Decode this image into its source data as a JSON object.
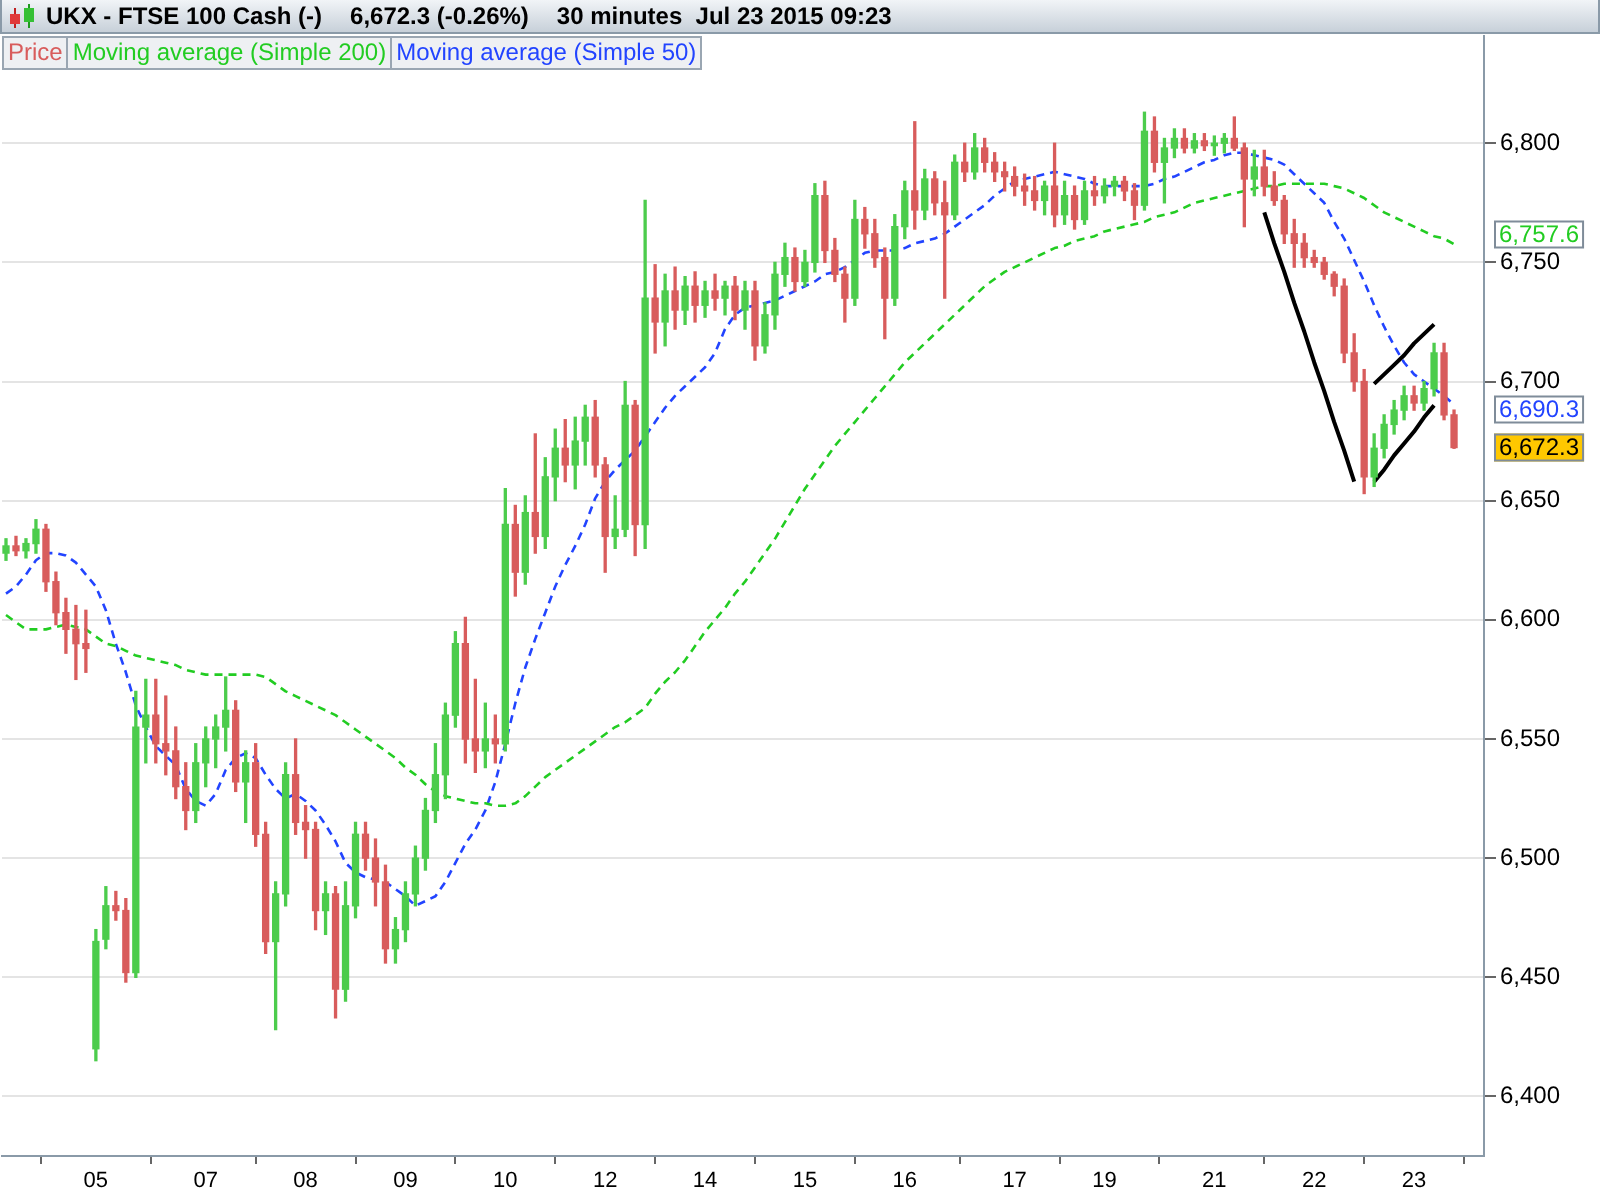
{
  "chart_data": {
    "type": "candlestick",
    "title": "UKX - FTSE 100 Cash (-)",
    "subtitle": "6,672.3 (-0.26%)",
    "annotations": [
      "30 minutes  Jul 23 2015 09:23"
    ],
    "categories": [
      null,
      null,
      null,
      null,
      null,
      null,
      null,
      null,
      null,
      "05",
      null,
      null,
      null,
      null,
      null,
      null,
      null,
      null,
      null,
      null,
      "07",
      null,
      null,
      null,
      null,
      null,
      null,
      null,
      null,
      null,
      "08",
      null,
      null,
      null,
      null,
      null,
      null,
      null,
      null,
      null,
      "09",
      null,
      null,
      null,
      null,
      null,
      null,
      null,
      null,
      null,
      "10",
      null,
      null,
      null,
      null,
      null,
      null,
      null,
      null,
      null,
      "12",
      null,
      null,
      null,
      null,
      null,
      null,
      null,
      null,
      null,
      "14",
      null,
      null,
      null,
      null,
      null,
      null,
      null,
      null,
      null,
      "15",
      null,
      null,
      null,
      null,
      null,
      null,
      null,
      null,
      null,
      "16",
      null,
      null,
      null,
      null,
      null,
      null,
      null,
      null,
      null,
      null,
      "17",
      null,
      null,
      null,
      null,
      null,
      null,
      null,
      null,
      "19",
      null,
      null,
      null,
      null,
      null,
      null,
      null,
      null,
      null,
      null,
      "21",
      null,
      null,
      null,
      null,
      null,
      null,
      null,
      null,
      null,
      "22",
      null,
      null,
      null,
      null,
      null,
      null,
      null,
      null,
      null,
      "23",
      null,
      null,
      null,
      null
    ],
    "ylim": [
      6375,
      6845
    ],
    "yticks": [
      {
        "value": 6400,
        "label": "6,400"
      },
      {
        "value": 6450,
        "label": "6,450"
      },
      {
        "value": 6500,
        "label": "6,500"
      },
      {
        "value": 6550,
        "label": "6,550"
      },
      {
        "value": 6600,
        "label": "6,600"
      },
      {
        "value": 6650,
        "label": "6,650"
      },
      {
        "value": 6700,
        "label": "6,700"
      },
      {
        "value": 6750,
        "label": "6,750"
      },
      {
        "value": 6800,
        "label": "6,800"
      }
    ],
    "grid": "y",
    "legend": "top left",
    "series": [
      {
        "name": "Price",
        "color": "#d85c5c",
        "ohlc": [
          [
            6628,
            6634,
            6625,
            6631
          ],
          [
            6631,
            6635,
            6627,
            6629
          ],
          [
            6629,
            6634,
            6626,
            6632
          ],
          [
            6632,
            6642,
            6628,
            6638
          ],
          [
            6638,
            6640,
            6612,
            6616
          ],
          [
            6616,
            6620,
            6598,
            6603
          ],
          [
            6603,
            6609,
            6586,
            6596
          ],
          [
            6596,
            6606,
            6575,
            6590
          ],
          [
            6590,
            6604,
            6578,
            6588
          ],
          [
            6420,
            6470,
            6415,
            6465
          ],
          [
            6466,
            6488,
            6462,
            6480
          ],
          [
            6480,
            6486,
            6474,
            6478
          ],
          [
            6478,
            6483,
            6448,
            6452
          ],
          [
            6452,
            6570,
            6450,
            6555
          ],
          [
            6555,
            6575,
            6540,
            6560
          ],
          [
            6560,
            6575,
            6540,
            6548
          ],
          [
            6548,
            6568,
            6535,
            6545
          ],
          [
            6545,
            6555,
            6525,
            6530
          ],
          [
            6530,
            6540,
            6512,
            6520
          ],
          [
            6520,
            6548,
            6515,
            6540
          ],
          [
            6540,
            6555,
            6530,
            6550
          ],
          [
            6550,
            6560,
            6538,
            6555
          ],
          [
            6555,
            6576,
            6545,
            6562
          ],
          [
            6562,
            6566,
            6528,
            6532
          ],
          [
            6532,
            6545,
            6515,
            6540
          ],
          [
            6540,
            6548,
            6505,
            6510
          ],
          [
            6510,
            6515,
            6460,
            6465
          ],
          [
            6465,
            6490,
            6428,
            6485
          ],
          [
            6485,
            6540,
            6480,
            6535
          ],
          [
            6535,
            6550,
            6510,
            6515
          ],
          [
            6515,
            6522,
            6500,
            6512
          ],
          [
            6512,
            6515,
            6470,
            6478
          ],
          [
            6478,
            6490,
            6468,
            6485
          ],
          [
            6485,
            6488,
            6433,
            6445
          ],
          [
            6445,
            6490,
            6440,
            6480
          ],
          [
            6480,
            6515,
            6475,
            6510
          ],
          [
            6510,
            6515,
            6495,
            6500
          ],
          [
            6500,
            6508,
            6480,
            6490
          ],
          [
            6490,
            6497,
            6456,
            6462
          ],
          [
            6462,
            6475,
            6456,
            6470
          ],
          [
            6470,
            6490,
            6465,
            6485
          ],
          [
            6485,
            6505,
            6480,
            6500
          ],
          [
            6500,
            6525,
            6495,
            6520
          ],
          [
            6520,
            6548,
            6515,
            6535
          ],
          [
            6535,
            6565,
            6525,
            6560
          ],
          [
            6560,
            6595,
            6555,
            6590
          ],
          [
            6590,
            6601,
            6540,
            6550
          ],
          [
            6550,
            6575,
            6536,
            6545
          ],
          [
            6545,
            6565,
            6538,
            6550
          ],
          [
            6550,
            6560,
            6540,
            6548
          ],
          [
            6548,
            6655,
            6545,
            6640
          ],
          [
            6640,
            6648,
            6610,
            6620
          ],
          [
            6620,
            6652,
            6615,
            6645
          ],
          [
            6645,
            6678,
            6628,
            6635
          ],
          [
            6635,
            6668,
            6630,
            6660
          ],
          [
            6660,
            6680,
            6650,
            6672
          ],
          [
            6672,
            6684,
            6658,
            6665
          ],
          [
            6665,
            6685,
            6655,
            6675
          ],
          [
            6675,
            6690,
            6665,
            6685
          ],
          [
            6685,
            6692,
            6660,
            6665
          ],
          [
            6665,
            6668,
            6620,
            6635
          ],
          [
            6635,
            6652,
            6630,
            6638
          ],
          [
            6638,
            6700,
            6635,
            6690
          ],
          [
            6690,
            6692,
            6627,
            6640
          ],
          [
            6640,
            6776,
            6630,
            6735
          ],
          [
            6735,
            6749,
            6712,
            6725
          ],
          [
            6725,
            6745,
            6715,
            6738
          ],
          [
            6738,
            6748,
            6722,
            6730
          ],
          [
            6730,
            6744,
            6724,
            6740
          ],
          [
            6740,
            6746,
            6725,
            6732
          ],
          [
            6732,
            6742,
            6727,
            6738
          ],
          [
            6738,
            6745,
            6730,
            6735
          ],
          [
            6735,
            6742,
            6728,
            6740
          ],
          [
            6740,
            6744,
            6726,
            6730
          ],
          [
            6730,
            6742,
            6722,
            6738
          ],
          [
            6738,
            6742,
            6709,
            6715
          ],
          [
            6715,
            6733,
            6712,
            6728
          ],
          [
            6728,
            6750,
            6722,
            6745
          ],
          [
            6745,
            6758,
            6740,
            6752
          ],
          [
            6752,
            6756,
            6738,
            6742
          ],
          [
            6742,
            6755,
            6740,
            6750
          ],
          [
            6750,
            6783,
            6746,
            6778
          ],
          [
            6778,
            6784,
            6750,
            6755
          ],
          [
            6755,
            6760,
            6742,
            6745
          ],
          [
            6745,
            6748,
            6725,
            6735
          ],
          [
            6735,
            6776,
            6732,
            6768
          ],
          [
            6768,
            6773,
            6756,
            6762
          ],
          [
            6762,
            6768,
            6748,
            6752
          ],
          [
            6752,
            6756,
            6718,
            6735
          ],
          [
            6735,
            6770,
            6732,
            6765
          ],
          [
            6765,
            6784,
            6760,
            6780
          ],
          [
            6780,
            6809,
            6764,
            6772
          ],
          [
            6772,
            6789,
            6768,
            6785
          ],
          [
            6785,
            6788,
            6770,
            6775
          ],
          [
            6775,
            6784,
            6735,
            6770
          ],
          [
            6770,
            6795,
            6768,
            6792
          ],
          [
            6792,
            6800,
            6784,
            6788
          ],
          [
            6788,
            6804,
            6785,
            6798
          ],
          [
            6798,
            6802,
            6788,
            6792
          ],
          [
            6792,
            6796,
            6784,
            6788
          ],
          [
            6788,
            6792,
            6780,
            6786
          ],
          [
            6786,
            6790,
            6778,
            6782
          ],
          [
            6782,
            6787,
            6774,
            6780
          ],
          [
            6780,
            6786,
            6772,
            6776
          ],
          [
            6776,
            6784,
            6770,
            6782
          ],
          [
            6782,
            6800,
            6765,
            6770
          ],
          [
            6770,
            6784,
            6766,
            6778
          ],
          [
            6778,
            6782,
            6764,
            6768
          ],
          [
            6768,
            6784,
            6766,
            6780
          ],
          [
            6780,
            6786,
            6774,
            6778
          ],
          [
            6778,
            6785,
            6775,
            6782
          ],
          [
            6782,
            6786,
            6778,
            6784
          ],
          [
            6784,
            6786,
            6776,
            6780
          ],
          [
            6780,
            6783,
            6768,
            6774
          ],
          [
            6774,
            6813,
            6772,
            6805
          ],
          [
            6805,
            6811,
            6788,
            6792
          ],
          [
            6792,
            6802,
            6775,
            6798
          ],
          [
            6798,
            6806,
            6794,
            6802
          ],
          [
            6802,
            6806,
            6796,
            6798
          ],
          [
            6798,
            6804,
            6796,
            6801
          ],
          [
            6801,
            6804,
            6797,
            6799
          ],
          [
            6799,
            6803,
            6795,
            6800
          ],
          [
            6800,
            6804,
            6796,
            6802
          ],
          [
            6802,
            6811,
            6797,
            6798
          ],
          [
            6798,
            6800,
            6765,
            6785
          ],
          [
            6785,
            6797,
            6778,
            6790
          ],
          [
            6790,
            6797,
            6778,
            6782
          ],
          [
            6782,
            6788,
            6774,
            6776
          ],
          [
            6776,
            6778,
            6758,
            6762
          ],
          [
            6762,
            6768,
            6748,
            6758
          ],
          [
            6758,
            6762,
            6748,
            6752
          ],
          [
            6752,
            6755,
            6748,
            6750
          ],
          [
            6750,
            6752,
            6743,
            6745
          ],
          [
            6745,
            6746,
            6736,
            6740
          ],
          [
            6740,
            6743,
            6708,
            6712
          ],
          [
            6712,
            6720,
            6696,
            6700
          ],
          [
            6700,
            6705,
            6653,
            6660
          ],
          [
            6660,
            6678,
            6656,
            6672
          ],
          [
            6672,
            6686,
            6668,
            6682
          ],
          [
            6682,
            6692,
            6678,
            6688
          ],
          [
            6688,
            6698,
            6684,
            6694
          ],
          [
            6694,
            6698,
            6688,
            6691
          ],
          [
            6691,
            6700,
            6688,
            6697
          ],
          [
            6697,
            6716,
            6694,
            6712
          ],
          [
            6712,
            6716,
            6684,
            6686
          ],
          [
            6686,
            6688,
            6672,
            6672.3
          ]
        ],
        "colors": [
          "#4ccc4c",
          "#d85c5c",
          "#4ccc4c",
          "#4ccc4c",
          "#d85c5c",
          "#d85c5c",
          "#d85c5c",
          "#d85c5c",
          "#d85c5c",
          "#4ccc4c",
          "#4ccc4c",
          "#d85c5c",
          "#d85c5c",
          "#4ccc4c",
          "#4ccc4c",
          "#d85c5c",
          "#d85c5c",
          "#d85c5c",
          "#d85c5c",
          "#4ccc4c",
          "#4ccc4c",
          "#4ccc4c",
          "#4ccc4c",
          "#d85c5c",
          "#4ccc4c",
          "#d85c5c",
          "#d85c5c",
          "#4ccc4c",
          "#4ccc4c",
          "#d85c5c",
          "#d85c5c",
          "#d85c5c",
          "#4ccc4c",
          "#d85c5c",
          "#4ccc4c",
          "#4ccc4c",
          "#d85c5c",
          "#d85c5c",
          "#d85c5c",
          "#4ccc4c",
          "#4ccc4c",
          "#4ccc4c",
          "#4ccc4c",
          "#4ccc4c",
          "#4ccc4c",
          "#4ccc4c",
          "#d85c5c",
          "#d85c5c",
          "#4ccc4c",
          "#d85c5c",
          "#4ccc4c",
          "#d85c5c",
          "#4ccc4c",
          "#d85c5c",
          "#4ccc4c",
          "#4ccc4c",
          "#d85c5c",
          "#4ccc4c",
          "#4ccc4c",
          "#d85c5c",
          "#d85c5c",
          "#4ccc4c",
          "#4ccc4c",
          "#d85c5c",
          "#4ccc4c",
          "#d85c5c",
          "#4ccc4c",
          "#d85c5c",
          "#4ccc4c",
          "#d85c5c",
          "#4ccc4c",
          "#d85c5c",
          "#4ccc4c",
          "#d85c5c",
          "#4ccc4c",
          "#d85c5c",
          "#4ccc4c",
          "#4ccc4c",
          "#4ccc4c",
          "#d85c5c",
          "#4ccc4c",
          "#4ccc4c",
          "#d85c5c",
          "#d85c5c",
          "#d85c5c",
          "#4ccc4c",
          "#d85c5c",
          "#d85c5c",
          "#d85c5c",
          "#4ccc4c",
          "#4ccc4c",
          "#d85c5c",
          "#4ccc4c",
          "#d85c5c",
          "#d85c5c",
          "#4ccc4c",
          "#d85c5c",
          "#4ccc4c",
          "#d85c5c",
          "#d85c5c",
          "#d85c5c",
          "#d85c5c",
          "#d85c5c",
          "#d85c5c",
          "#4ccc4c",
          "#d85c5c",
          "#4ccc4c",
          "#d85c5c",
          "#4ccc4c",
          "#d85c5c",
          "#4ccc4c",
          "#4ccc4c",
          "#d85c5c",
          "#d85c5c",
          "#4ccc4c",
          "#d85c5c",
          "#4ccc4c",
          "#4ccc4c",
          "#d85c5c",
          "#4ccc4c",
          "#d85c5c",
          "#4ccc4c",
          "#4ccc4c",
          "#d85c5c",
          "#d85c5c",
          "#4ccc4c",
          "#d85c5c",
          "#d85c5c",
          "#d85c5c",
          "#d85c5c",
          "#d85c5c",
          "#d85c5c",
          "#d85c5c",
          "#d85c5c",
          "#d85c5c",
          "#d85c5c",
          "#d85c5c",
          "#4ccc4c",
          "#4ccc4c",
          "#4ccc4c",
          "#4ccc4c",
          "#d85c5c",
          "#4ccc4c",
          "#4ccc4c",
          "#d85c5c",
          "#d85c5c"
        ],
        "value_labels": [
          null,
          null,
          null,
          null,
          null,
          null,
          null,
          null,
          null,
          null,
          null,
          null,
          null,
          null,
          null,
          null,
          null,
          null,
          null,
          null,
          null,
          null,
          null,
          null,
          null,
          null,
          null,
          null,
          null,
          null,
          null,
          null,
          null,
          null,
          null,
          null,
          null,
          null,
          null,
          null,
          null,
          null,
          null,
          null,
          null,
          null,
          null,
          null,
          null,
          null,
          null,
          null,
          null,
          null,
          null,
          null,
          null,
          null,
          null,
          null,
          null,
          null,
          null,
          null,
          null,
          null,
          null,
          null,
          null,
          null,
          null,
          null,
          null,
          null,
          null,
          null,
          null,
          null,
          null,
          null,
          null,
          null,
          null,
          null,
          null,
          null,
          null,
          null,
          null,
          null,
          null,
          null,
          null,
          null,
          null,
          null,
          null,
          null,
          null,
          null,
          null,
          null,
          null,
          null,
          null,
          null,
          null,
          null,
          null,
          null,
          null,
          null,
          null,
          null,
          null,
          null,
          null,
          null,
          null,
          null,
          null,
          null,
          null,
          null,
          null,
          null,
          null,
          null,
          null,
          null,
          null,
          null,
          null,
          null,
          null,
          null,
          null,
          null,
          null,
          null,
          null,
          null,
          null,
          null,
          null,
          "6,672.3"
        ]
      },
      {
        "type": "line",
        "name": "Moving average (Simple 200)",
        "color": "#22cc22",
        "line_style": "dashed",
        "values": [
          6602,
          6599,
          6596,
          6596,
          6596,
          6597,
          6598,
          6597,
          6596,
          6593,
          6590,
          6589,
          6587,
          6585,
          6584,
          6583,
          6582,
          6581,
          6579,
          6578,
          6577,
          6577,
          6577,
          6577,
          6577,
          6577,
          6576,
          6573,
          6570,
          6568,
          6566,
          6564,
          6562,
          6560,
          6557,
          6554,
          6551,
          6548,
          6545,
          6542,
          6538,
          6535,
          6531,
          6528,
          6526,
          6525,
          6524,
          6523,
          6523,
          6522,
          6522,
          6523,
          6526,
          6530,
          6534,
          6537,
          6540,
          6543,
          6546,
          6549,
          6552,
          6555,
          6557,
          6560,
          6563,
          6569,
          6574,
          6578,
          6583,
          6589,
          6595,
          6600,
          6605,
          6611,
          6616,
          6622,
          6628,
          6634,
          6641,
          6648,
          6655,
          6661,
          6667,
          6673,
          6678,
          6683,
          6688,
          6693,
          6698,
          6703,
          6708,
          6712,
          6716,
          6720,
          6724,
          6728,
          6732,
          6736,
          6740,
          6743,
          6746,
          6748,
          6750,
          6752,
          6754,
          6756,
          6757,
          6759,
          6760,
          6761,
          6763,
          6764,
          6765,
          6766,
          6767,
          6769,
          6770,
          6771,
          6773,
          6775,
          6776,
          6777,
          6778,
          6779,
          6780,
          6781,
          6782,
          6782,
          6783,
          6783,
          6783,
          6783,
          6783,
          6782,
          6781,
          6779,
          6777,
          6774,
          6771,
          6769,
          6767,
          6765,
          6763,
          6761,
          6760,
          6757.6
        ],
        "value_labels": [
          null,
          null,
          null,
          null,
          null,
          null,
          null,
          null,
          null,
          null,
          null,
          null,
          null,
          null,
          null,
          null,
          null,
          null,
          null,
          null,
          null,
          null,
          null,
          null,
          null,
          null,
          null,
          null,
          null,
          null,
          null,
          null,
          null,
          null,
          null,
          null,
          null,
          null,
          null,
          null,
          null,
          null,
          null,
          null,
          null,
          null,
          null,
          null,
          null,
          null,
          null,
          null,
          null,
          null,
          null,
          null,
          null,
          null,
          null,
          null,
          null,
          null,
          null,
          null,
          null,
          null,
          null,
          null,
          null,
          null,
          null,
          null,
          null,
          null,
          null,
          null,
          null,
          null,
          null,
          null,
          null,
          null,
          null,
          null,
          null,
          null,
          null,
          null,
          null,
          null,
          null,
          null,
          null,
          null,
          null,
          null,
          null,
          null,
          null,
          null,
          null,
          null,
          null,
          null,
          null,
          null,
          null,
          null,
          null,
          null,
          null,
          null,
          null,
          null,
          null,
          null,
          null,
          null,
          null,
          null,
          null,
          null,
          null,
          null,
          null,
          null,
          null,
          null,
          null,
          null,
          null,
          null,
          null,
          null,
          null,
          null,
          null,
          null,
          null,
          null,
          null,
          null,
          null,
          null,
          null,
          "6,757.6"
        ]
      },
      {
        "type": "line",
        "name": "Moving average (Simple 50)",
        "color": "#2244ff",
        "line_style": "dashed",
        "values": [
          6611,
          6614,
          6619,
          6625,
          6628,
          6628,
          6627,
          6624,
          6619,
          6614,
          6604,
          6590,
          6578,
          6564,
          6555,
          6547,
          6543,
          6539,
          6529,
          6524,
          6522,
          6527,
          6537,
          6542,
          6544,
          6542,
          6535,
          6529,
          6525,
          6527,
          6524,
          6520,
          6514,
          6507,
          6498,
          6494,
          6492,
          6491,
          6490,
          6487,
          6484,
          6480,
          6482,
          6484,
          6490,
          6498,
          6506,
          6512,
          6520,
          6532,
          6548,
          6565,
          6580,
          6592,
          6603,
          6614,
          6623,
          6631,
          6640,
          6651,
          6658,
          6663,
          6667,
          6671,
          6677,
          6683,
          6689,
          6694,
          6698,
          6702,
          6706,
          6712,
          6722,
          6728,
          6731,
          6732,
          6733,
          6734,
          6736,
          6738,
          6740,
          6742,
          6745,
          6746,
          6748,
          6751,
          6754,
          6755,
          6755,
          6755,
          6756,
          6758,
          6759,
          6760,
          6762,
          6765,
          6768,
          6771,
          6774,
          6778,
          6781,
          6784,
          6785,
          6786,
          6787,
          6788,
          6787,
          6786,
          6785,
          6783,
          6782,
          6782,
          6782,
          6782,
          6782,
          6783,
          6785,
          6786,
          6788,
          6790,
          6792,
          6793,
          6795,
          6796,
          6796,
          6795,
          6794,
          6793,
          6791,
          6787,
          6783,
          6779,
          6775,
          6767,
          6760,
          6751,
          6742,
          6732,
          6723,
          6715,
          6708,
          6703,
          6700,
          6697,
          6694,
          6690.3
        ],
        "value_labels": [
          null,
          null,
          null,
          null,
          null,
          null,
          null,
          null,
          null,
          null,
          null,
          null,
          null,
          null,
          null,
          null,
          null,
          null,
          null,
          null,
          null,
          null,
          null,
          null,
          null,
          null,
          null,
          null,
          null,
          null,
          null,
          null,
          null,
          null,
          null,
          null,
          null,
          null,
          null,
          null,
          null,
          null,
          null,
          null,
          null,
          null,
          null,
          null,
          null,
          null,
          null,
          null,
          null,
          null,
          null,
          null,
          null,
          null,
          null,
          null,
          null,
          null,
          null,
          null,
          null,
          null,
          null,
          null,
          null,
          null,
          null,
          null,
          null,
          null,
          null,
          null,
          null,
          null,
          null,
          null,
          null,
          null,
          null,
          null,
          null,
          null,
          null,
          null,
          null,
          null,
          null,
          null,
          null,
          null,
          null,
          null,
          null,
          null,
          null,
          null,
          null,
          null,
          null,
          null,
          null,
          null,
          null,
          null,
          null,
          null,
          null,
          null,
          null,
          null,
          null,
          null,
          null,
          null,
          null,
          null,
          null,
          null,
          null,
          null,
          null,
          null,
          null,
          null,
          null,
          null,
          null,
          null,
          null,
          null,
          null,
          null,
          null,
          null,
          null,
          null,
          null,
          null,
          null,
          null,
          null,
          "6,690.3"
        ]
      },
      {
        "type": "line",
        "color": "#000000",
        "values": [
          null,
          null,
          null,
          null,
          null,
          null,
          null,
          null,
          null,
          null,
          null,
          null,
          null,
          null,
          null,
          null,
          null,
          null,
          null,
          null,
          null,
          null,
          null,
          null,
          null,
          null,
          null,
          null,
          null,
          null,
          null,
          null,
          null,
          null,
          null,
          null,
          null,
          null,
          null,
          null,
          null,
          null,
          null,
          null,
          null,
          null,
          null,
          null,
          null,
          null,
          null,
          null,
          null,
          null,
          null,
          null,
          null,
          null,
          null,
          null,
          null,
          null,
          null,
          null,
          null,
          null,
          null,
          null,
          null,
          null,
          null,
          null,
          null,
          null,
          null,
          null,
          null,
          null,
          null,
          null,
          null,
          null,
          null,
          null,
          null,
          null,
          null,
          null,
          null,
          null,
          null,
          null,
          null,
          null,
          null,
          null,
          null,
          null,
          null,
          null,
          null,
          null,
          null,
          null,
          null,
          null,
          null,
          null,
          null,
          null,
          null,
          null,
          null,
          null,
          null,
          null,
          null,
          null,
          null,
          null,
          null,
          null,
          null,
          null,
          null,
          null,
          6771,
          6758,
          6746,
          6733,
          6721,
          6708,
          6696,
          6683,
          6671,
          6658,
          null,
          null,
          null,
          null,
          null,
          null,
          null,
          null,
          null,
          null
        ]
      },
      {
        "type": "line",
        "color": "#000000",
        "values": [
          null,
          null,
          null,
          null,
          null,
          null,
          null,
          null,
          null,
          null,
          null,
          null,
          null,
          null,
          null,
          null,
          null,
          null,
          null,
          null,
          null,
          null,
          null,
          null,
          null,
          null,
          null,
          null,
          null,
          null,
          null,
          null,
          null,
          null,
          null,
          null,
          null,
          null,
          null,
          null,
          null,
          null,
          null,
          null,
          null,
          null,
          null,
          null,
          null,
          null,
          null,
          null,
          null,
          null,
          null,
          null,
          null,
          null,
          null,
          null,
          null,
          null,
          null,
          null,
          null,
          null,
          null,
          null,
          null,
          null,
          null,
          null,
          null,
          null,
          null,
          null,
          null,
          null,
          null,
          null,
          null,
          null,
          null,
          null,
          null,
          null,
          null,
          null,
          null,
          null,
          null,
          null,
          null,
          null,
          null,
          null,
          null,
          null,
          null,
          null,
          null,
          null,
          null,
          null,
          null,
          null,
          null,
          null,
          null,
          null,
          null,
          null,
          null,
          null,
          null,
          null,
          null,
          null,
          null,
          null,
          null,
          null,
          null,
          null,
          null,
          null,
          null,
          null,
          null,
          null,
          null,
          null,
          null,
          null,
          null,
          null,
          null,
          6699,
          6703,
          6707,
          6711,
          6716,
          6720,
          6724,
          null,
          null
        ]
      },
      {
        "type": "line",
        "color": "#000000",
        "values": [
          null,
          null,
          null,
          null,
          null,
          null,
          null,
          null,
          null,
          null,
          null,
          null,
          null,
          null,
          null,
          null,
          null,
          null,
          null,
          null,
          null,
          null,
          null,
          null,
          null,
          null,
          null,
          null,
          null,
          null,
          null,
          null,
          null,
          null,
          null,
          null,
          null,
          null,
          null,
          null,
          null,
          null,
          null,
          null,
          null,
          null,
          null,
          null,
          null,
          null,
          null,
          null,
          null,
          null,
          null,
          null,
          null,
          null,
          null,
          null,
          null,
          null,
          null,
          null,
          null,
          null,
          null,
          null,
          null,
          null,
          null,
          null,
          null,
          null,
          null,
          null,
          null,
          null,
          null,
          null,
          null,
          null,
          null,
          null,
          null,
          null,
          null,
          null,
          null,
          null,
          null,
          null,
          null,
          null,
          null,
          null,
          null,
          null,
          null,
          null,
          null,
          null,
          null,
          null,
          null,
          null,
          null,
          null,
          null,
          null,
          null,
          null,
          null,
          null,
          null,
          null,
          null,
          null,
          null,
          null,
          null,
          null,
          null,
          null,
          null,
          null,
          null,
          null,
          null,
          null,
          null,
          null,
          null,
          null,
          null,
          null,
          null,
          6658,
          6663,
          6669,
          6674,
          6679,
          6685,
          6690,
          null,
          null
        ]
      }
    ]
  }
}
